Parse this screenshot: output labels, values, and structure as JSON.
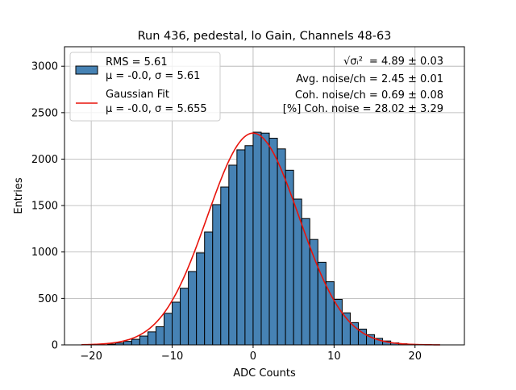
{
  "chart_data": {
    "type": "bar",
    "title": "Run 436, pedestal, lo Gain, Channels 48-63",
    "xlabel": "ADC Counts",
    "ylabel": "Entries",
    "xlim": [
      -23.3,
      26.1
    ],
    "ylim": [
      0,
      3210
    ],
    "xticks": [
      -20,
      -10,
      0,
      10,
      20
    ],
    "xtick_labels": [
      "−20",
      "−10",
      "0",
      "10",
      "20"
    ],
    "yticks": [
      0,
      500,
      1000,
      1500,
      2000,
      2500,
      3000
    ],
    "ytick_labels": [
      "0",
      "500",
      "1000",
      "1500",
      "2000",
      "2500",
      "3000"
    ],
    "grid": true,
    "legend_position": "top-left",
    "bin_width": 1,
    "bins": [
      {
        "x": -17.5,
        "y": 8
      },
      {
        "x": -16.5,
        "y": 20
      },
      {
        "x": -15.5,
        "y": 38
      },
      {
        "x": -14.5,
        "y": 60
      },
      {
        "x": -13.5,
        "y": 95
      },
      {
        "x": -12.5,
        "y": 140
      },
      {
        "x": -11.5,
        "y": 195
      },
      {
        "x": -10.5,
        "y": 340
      },
      {
        "x": -9.5,
        "y": 460
      },
      {
        "x": -8.5,
        "y": 610
      },
      {
        "x": -7.5,
        "y": 790
      },
      {
        "x": -6.5,
        "y": 990
      },
      {
        "x": -5.5,
        "y": 1215
      },
      {
        "x": -4.5,
        "y": 1510
      },
      {
        "x": -3.5,
        "y": 1700
      },
      {
        "x": -2.5,
        "y": 1935
      },
      {
        "x": -1.5,
        "y": 2100
      },
      {
        "x": -0.5,
        "y": 2145
      },
      {
        "x": 0.5,
        "y": 2290
      },
      {
        "x": 1.5,
        "y": 2280
      },
      {
        "x": 2.5,
        "y": 2225
      },
      {
        "x": 3.5,
        "y": 2110
      },
      {
        "x": 4.5,
        "y": 1880
      },
      {
        "x": 5.5,
        "y": 1570
      },
      {
        "x": 6.5,
        "y": 1360
      },
      {
        "x": 7.5,
        "y": 1135
      },
      {
        "x": 8.5,
        "y": 890
      },
      {
        "x": 9.5,
        "y": 680
      },
      {
        "x": 10.5,
        "y": 490
      },
      {
        "x": 11.5,
        "y": 345
      },
      {
        "x": 12.5,
        "y": 240
      },
      {
        "x": 13.5,
        "y": 170
      },
      {
        "x": 14.5,
        "y": 110
      },
      {
        "x": 15.5,
        "y": 70
      },
      {
        "x": 16.5,
        "y": 42
      },
      {
        "x": 17.5,
        "y": 22
      },
      {
        "x": 18.5,
        "y": 12
      },
      {
        "x": 19.5,
        "y": 5
      }
    ],
    "series": [
      {
        "name": "RMS = 5.61",
        "name_line2": "μ = -0.0, σ = 5.61",
        "kind": "histogram",
        "color": "#4682b4",
        "edgecolor": "#000000"
      },
      {
        "name": "Gaussian Fit",
        "name_line2": "μ = -0.0, σ = 5.655",
        "kind": "line",
        "color": "#e8140c",
        "mu": 0.0,
        "sigma": 5.655,
        "amplitude": 2280,
        "x_range": [
          -21.2,
          23.1
        ]
      }
    ],
    "annotations": [
      {
        "prefix": "√σᵢ² ",
        "text": "= 4.89 ± 0.03"
      },
      {
        "text": "Avg. noise/ch = 2.45 ± 0.01"
      },
      {
        "text": "Coh. noise/ch = 0.69 ± 0.08"
      },
      {
        "text": "[%] Coh. noise = 28.02 ± 3.29"
      }
    ]
  }
}
